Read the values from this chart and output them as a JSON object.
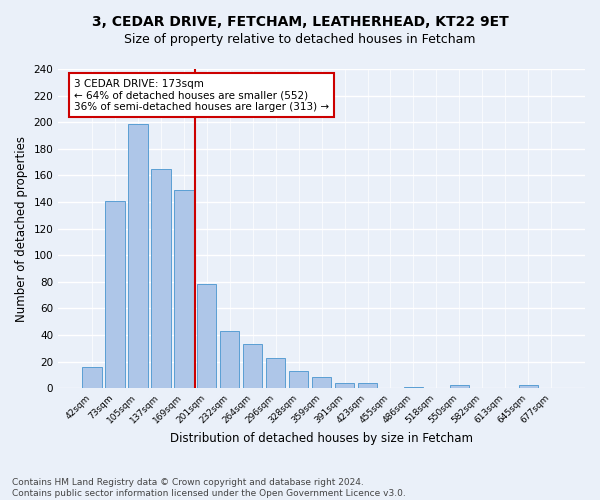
{
  "title1": "3, CEDAR DRIVE, FETCHAM, LEATHERHEAD, KT22 9ET",
  "title2": "Size of property relative to detached houses in Fetcham",
  "xlabel": "Distribution of detached houses by size in Fetcham",
  "ylabel": "Number of detached properties",
  "categories": [
    "42sqm",
    "73sqm",
    "105sqm",
    "137sqm",
    "169sqm",
    "201sqm",
    "232sqm",
    "264sqm",
    "296sqm",
    "328sqm",
    "359sqm",
    "391sqm",
    "423sqm",
    "455sqm",
    "486sqm",
    "518sqm",
    "550sqm",
    "582sqm",
    "613sqm",
    "645sqm",
    "677sqm"
  ],
  "values": [
    16,
    141,
    199,
    165,
    149,
    78,
    43,
    33,
    23,
    13,
    8,
    4,
    4,
    0,
    1,
    0,
    2,
    0,
    0,
    2,
    0
  ],
  "bar_color": "#aec6e8",
  "bar_edge_color": "#5a9fd4",
  "vline_x_index": 4.5,
  "vline_color": "#cc0000",
  "annotation_text": "3 CEDAR DRIVE: 173sqm\n← 64% of detached houses are smaller (552)\n36% of semi-detached houses are larger (313) →",
  "annotation_box_color": "#ffffff",
  "annotation_box_edge": "#cc0000",
  "ylim": [
    0,
    240
  ],
  "yticks": [
    0,
    20,
    40,
    60,
    80,
    100,
    120,
    140,
    160,
    180,
    200,
    220,
    240
  ],
  "footnote": "Contains HM Land Registry data © Crown copyright and database right 2024.\nContains public sector information licensed under the Open Government Licence v3.0.",
  "bg_color": "#eaf0f9",
  "grid_color": "#ffffff",
  "title1_fontsize": 10,
  "title2_fontsize": 9,
  "xlabel_fontsize": 8.5,
  "ylabel_fontsize": 8.5,
  "footnote_fontsize": 6.5,
  "annotation_fontsize": 7.5
}
